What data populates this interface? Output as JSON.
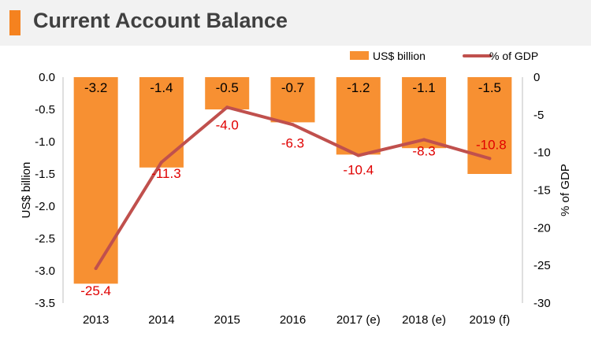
{
  "title": "Current Account Balance",
  "colors": {
    "accent": "#f5821f",
    "bar": "#f79032",
    "line": "#c0504d",
    "line_label": "#e00000"
  },
  "chart_data": {
    "type": "bar",
    "title": "Current Account Balance",
    "categories": [
      "2013",
      "2014",
      "2015",
      "2016",
      "2017 (e)",
      "2018 (e)",
      "2019 (f)"
    ],
    "series": [
      {
        "name": "US$ billion",
        "type": "bar",
        "axis": "left",
        "values": [
          -3.2,
          -1.4,
          -0.5,
          -0.7,
          -1.2,
          -1.1,
          -1.5
        ],
        "labels": [
          "-3.2",
          "-1.4",
          "-0.5",
          "-0.7",
          "-1.2",
          "-1.1",
          "-1.5"
        ]
      },
      {
        "name": "% of GDP",
        "type": "line",
        "axis": "right",
        "values": [
          -25.4,
          -11.3,
          -4.0,
          -6.3,
          -10.4,
          -8.3,
          -10.8
        ],
        "labels": [
          "-25.4",
          "-11.3",
          "-4.0",
          "-6.3",
          "-10.4",
          "-8.3",
          "-10.8"
        ]
      }
    ],
    "y_left": {
      "label": "US$ billion",
      "ylim": [
        -3.5,
        0.0
      ],
      "ticks": [
        "0.0",
        "-0.5",
        "-1.0",
        "-1.5",
        "-2.0",
        "-2.5",
        "-3.0",
        "-3.5"
      ]
    },
    "y_right": {
      "label": "% of GDP",
      "ylim": [
        -30,
        0
      ],
      "ticks": [
        "0",
        "-5",
        "-10",
        "-15",
        "-20",
        "-25",
        "-30"
      ]
    },
    "legend": "top-right",
    "grid": false
  }
}
